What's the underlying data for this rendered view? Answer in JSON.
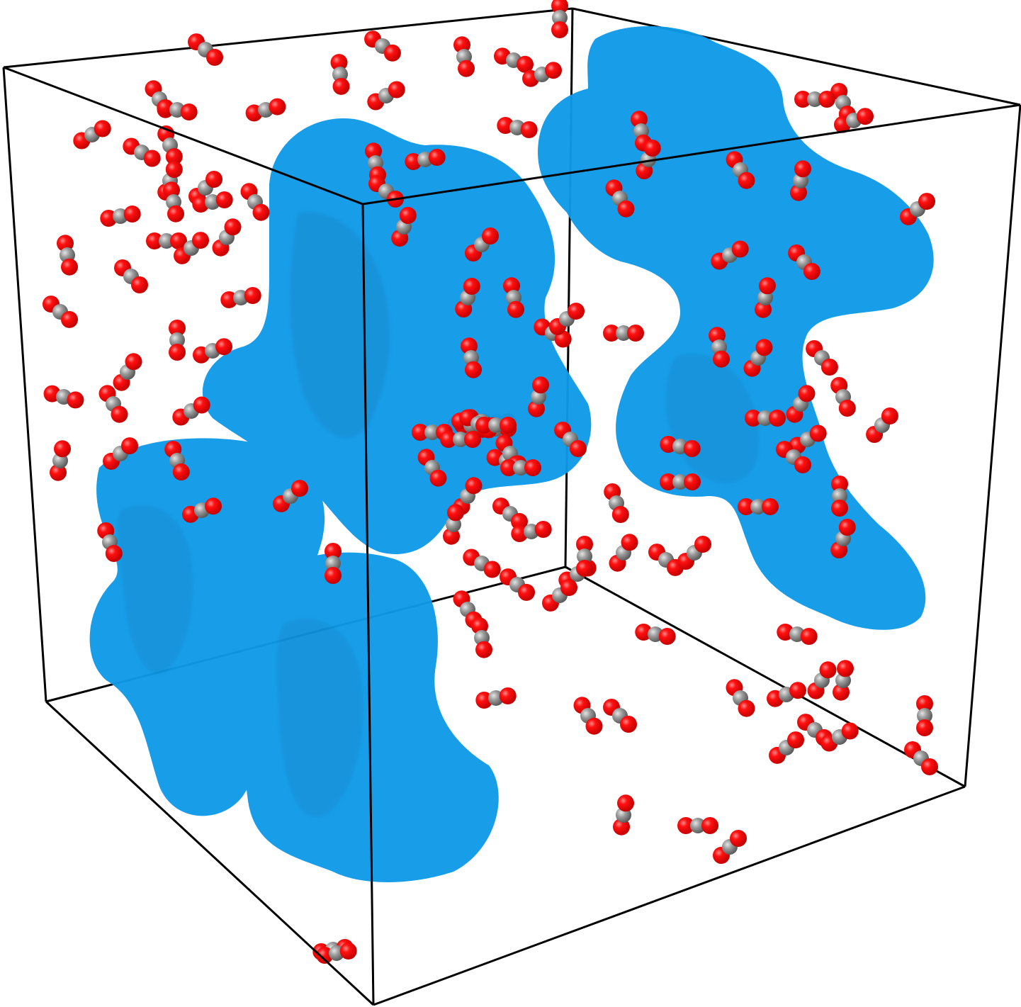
{
  "scene": {
    "background_color": "#ffffff",
    "box_edge_color": "#000000",
    "blob_color": "#0f9ae8",
    "blob_shade_color": "#0a6fb0",
    "oxygen_color": "#ff0000",
    "carbon_color": "#909090"
  }
}
